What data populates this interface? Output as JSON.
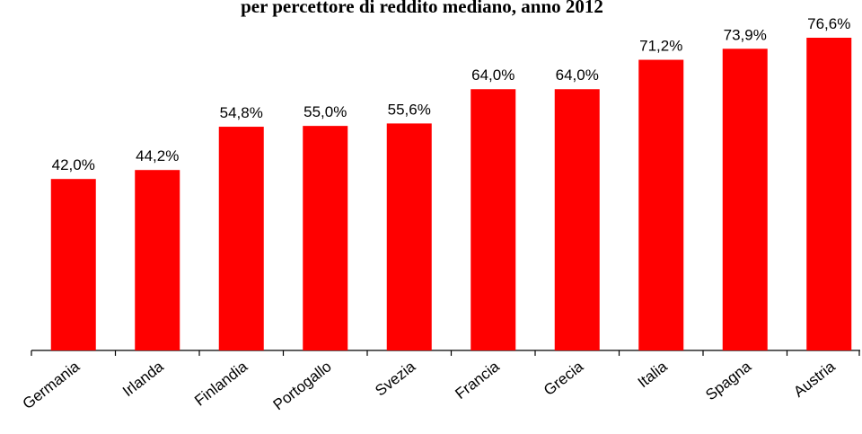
{
  "chart_data": {
    "type": "bar",
    "title": "per percettore di reddito mediano, anno 2012",
    "categories": [
      "Germania",
      "Irlanda",
      "Finlandia",
      "Portogallo",
      "Svezia",
      "Francia",
      "Grecia",
      "Italia",
      "Spagna",
      "Austria"
    ],
    "values": [
      42.0,
      44.2,
      54.8,
      55.0,
      55.6,
      64.0,
      64.0,
      71.2,
      73.9,
      76.6
    ],
    "value_labels": [
      "42,0%",
      "44,2%",
      "54,8%",
      "55,0%",
      "55,6%",
      "64,0%",
      "64,0%",
      "71,2%",
      "73,9%",
      "76,6%"
    ],
    "color": "#ff0000"
  }
}
